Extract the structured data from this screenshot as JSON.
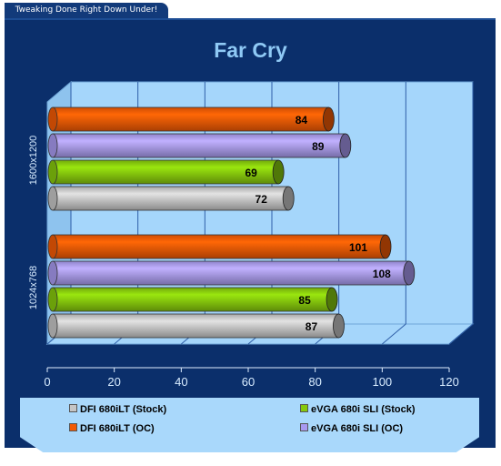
{
  "header": {
    "tagline": "Tweaking Done Right Down Under!"
  },
  "chart_data": {
    "type": "bar",
    "orientation": "horizontal",
    "title": "Far Cry",
    "categories": [
      "1600x1200",
      "1024x768"
    ],
    "series": [
      {
        "name": "DFI 680iLT (OC)",
        "color": "#f35a05",
        "values": [
          84,
          101
        ]
      },
      {
        "name": "eVGA 680i SLI (OC)",
        "color": "#a89af0",
        "values": [
          89,
          108
        ]
      },
      {
        "name": "eVGA 680i SLI (Stock)",
        "color": "#86c80d",
        "values": [
          69,
          85
        ]
      },
      {
        "name": "DFI 680iLT (Stock)",
        "color": "#c5c5c5",
        "values": [
          72,
          87
        ]
      }
    ],
    "xlim": [
      0,
      120
    ],
    "xticks": [
      "0",
      "20",
      "40",
      "60",
      "80",
      "100",
      "120"
    ],
    "grid": true,
    "legend_position": "bottom"
  },
  "legend": {
    "items": [
      {
        "label": "DFI 680iLT (Stock)",
        "color": "#c5c5c5"
      },
      {
        "label": "eVGA 680i SLI (Stock)",
        "color": "#86c80d"
      },
      {
        "label": "DFI 680iLT (OC)",
        "color": "#f35a05"
      },
      {
        "label": "eVGA 680i SLI (OC)",
        "color": "#a89af0"
      }
    ]
  }
}
